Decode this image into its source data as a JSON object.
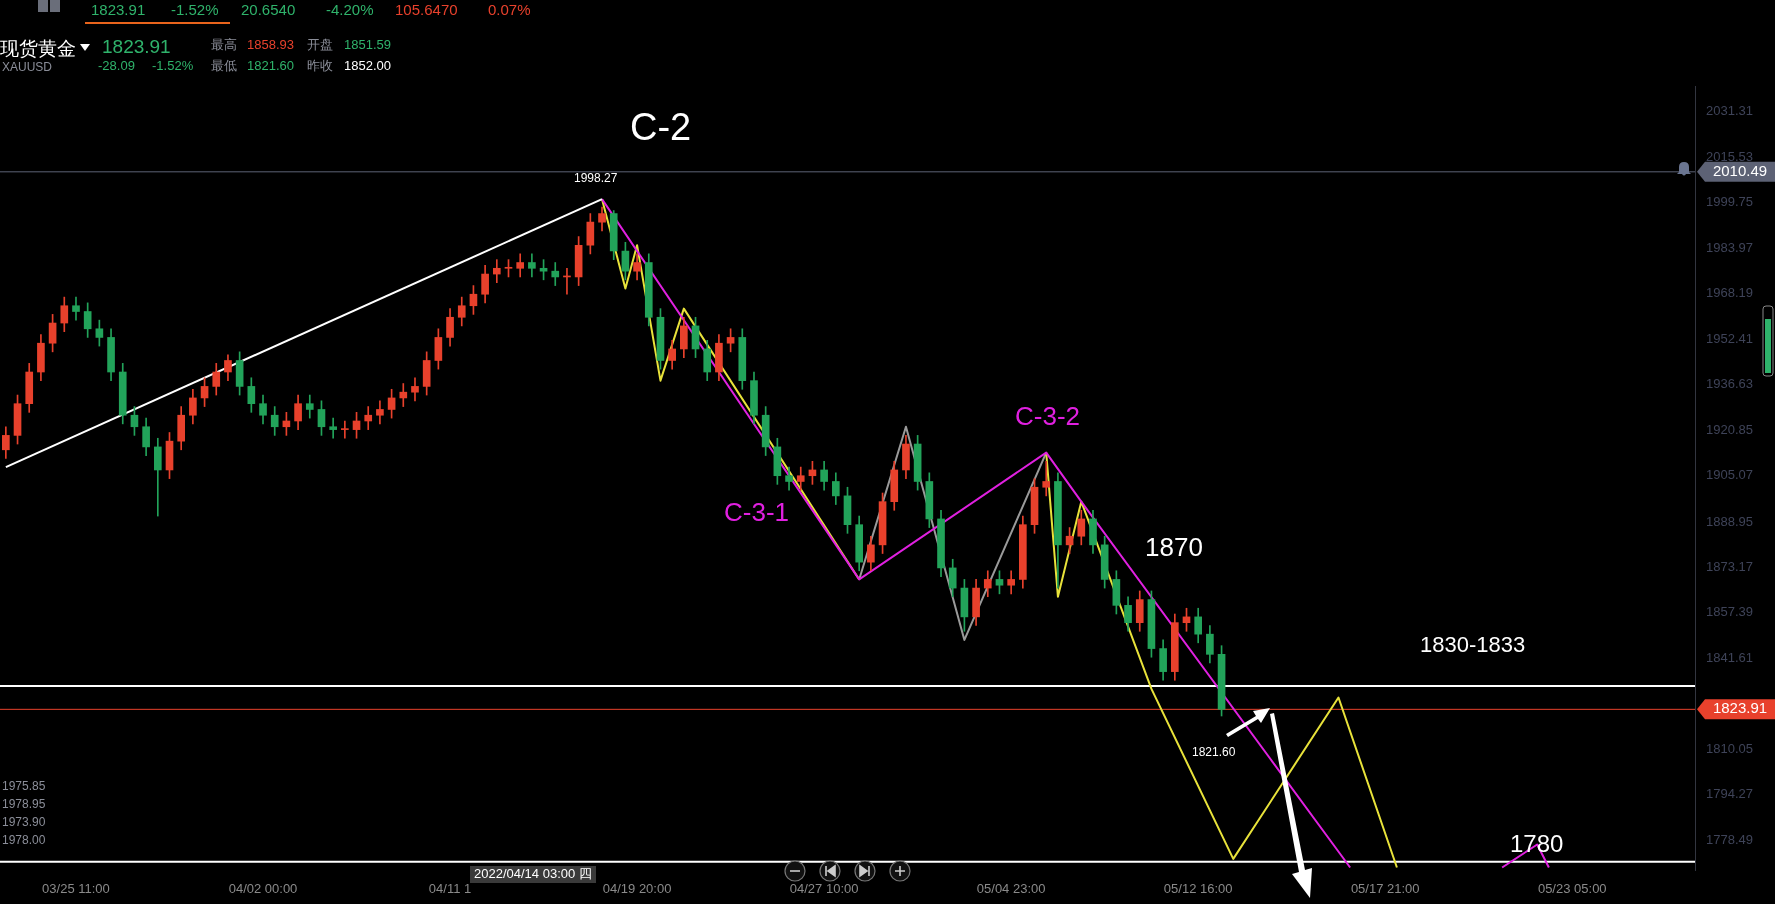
{
  "chart_data": {
    "type": "candlestick",
    "title": "现货黄金",
    "subtitle": "XAUUSD",
    "categories": [
      null,
      null,
      null,
      null,
      null,
      null,
      "03/25 11:00",
      null,
      null,
      null,
      null,
      null,
      null,
      null,
      null,
      null,
      null,
      null,
      null,
      null,
      null,
      null,
      "04/02 00:00",
      null,
      null,
      null,
      null,
      null,
      null,
      null,
      null,
      null,
      null,
      null,
      null,
      null,
      null,
      null,
      "04/11 1",
      null,
      null,
      null,
      null,
      null,
      null,
      null,
      null,
      null,
      null,
      null,
      null,
      null,
      null,
      null,
      "04/19 20:00",
      null,
      null,
      null,
      null,
      null,
      null,
      null,
      null,
      null,
      null,
      null,
      null,
      null,
      null,
      null,
      "04/27 10:00",
      null,
      null,
      null,
      null,
      null,
      null,
      null,
      null,
      null,
      null,
      null,
      null,
      null,
      null,
      null,
      "05/04 23:00",
      null,
      null,
      null,
      null,
      null,
      null,
      null,
      null,
      null,
      null,
      null,
      null,
      null,
      null,
      null,
      "05/12 16:00",
      null,
      null,
      null,
      null,
      null,
      null,
      null,
      null,
      null,
      null,
      null,
      null,
      null,
      null,
      null,
      "05/17 21:00",
      null,
      null,
      null,
      null,
      null,
      null,
      null,
      null,
      null,
      null,
      null,
      null,
      null,
      null,
      null,
      "05/23 05:00",
      null,
      null,
      null,
      null,
      null,
      null,
      null,
      null,
      null,
      null
    ],
    "ohlc": [
      [
        1914,
        1922,
        1911,
        1919
      ],
      [
        1919,
        1933,
        1916,
        1930
      ],
      [
        1930,
        1944,
        1927,
        1941
      ],
      [
        1941,
        1954,
        1938,
        1951
      ],
      [
        1951,
        1961,
        1948,
        1958
      ],
      [
        1958,
        1967,
        1955,
        1964
      ],
      [
        1964,
        1967,
        1959,
        1962
      ],
      [
        1962,
        1965,
        1953,
        1956
      ],
      [
        1956,
        1959,
        1950,
        1953
      ],
      [
        1953,
        1956,
        1938,
        1941
      ],
      [
        1941,
        1944,
        1923,
        1926
      ],
      [
        1926,
        1929,
        1919,
        1922
      ],
      [
        1922,
        1925,
        1912,
        1915
      ],
      [
        1915,
        1918,
        1891,
        1907
      ],
      [
        1907,
        1920,
        1904,
        1917
      ],
      [
        1917,
        1929,
        1914,
        1926
      ],
      [
        1926,
        1935,
        1923,
        1932
      ],
      [
        1932,
        1939,
        1929,
        1936
      ],
      [
        1936,
        1944,
        1933,
        1941
      ],
      [
        1941,
        1947,
        1938,
        1945
      ],
      [
        1945,
        1948,
        1933,
        1936
      ],
      [
        1936,
        1939,
        1927,
        1930
      ],
      [
        1930,
        1933,
        1923,
        1926
      ],
      [
        1926,
        1929,
        1919,
        1922
      ],
      [
        1922,
        1927,
        1919,
        1924
      ],
      [
        1924,
        1933,
        1921,
        1930
      ],
      [
        1930,
        1933,
        1925,
        1928
      ],
      [
        1928,
        1931,
        1919,
        1922
      ],
      [
        1922,
        1925,
        1918,
        1921
      ],
      [
        1921,
        1924,
        1918,
        1921
      ],
      [
        1921,
        1927,
        1918,
        1924
      ],
      [
        1924,
        1929,
        1921,
        1926
      ],
      [
        1926,
        1931,
        1923,
        1928
      ],
      [
        1928,
        1935,
        1925,
        1932
      ],
      [
        1932,
        1937,
        1929,
        1934
      ],
      [
        1934,
        1939,
        1931,
        1936
      ],
      [
        1936,
        1948,
        1933,
        1945
      ],
      [
        1945,
        1956,
        1942,
        1953
      ],
      [
        1953,
        1963,
        1950,
        1960
      ],
      [
        1960,
        1967,
        1957,
        1964
      ],
      [
        1964,
        1971,
        1961,
        1968
      ],
      [
        1968,
        1978,
        1965,
        1975
      ],
      [
        1975,
        1980,
        1972,
        1977
      ],
      [
        1977,
        1980,
        1974,
        1977
      ],
      [
        1977,
        1982,
        1974,
        1979
      ],
      [
        1979,
        1982,
        1974,
        1977
      ],
      [
        1977,
        1980,
        1973,
        1976
      ],
      [
        1976,
        1979,
        1971,
        1974
      ],
      [
        1974,
        1977,
        1968,
        1974
      ],
      [
        1974,
        1988,
        1971,
        1985
      ],
      [
        1985,
        1996,
        1982,
        1993
      ],
      [
        1993,
        1998.27,
        1990,
        1996
      ],
      [
        1996,
        1997,
        1980,
        1983
      ],
      [
        1983,
        1986,
        1973,
        1976
      ],
      [
        1976,
        1982,
        1973,
        1979
      ],
      [
        1979,
        1982,
        1957,
        1960
      ],
      [
        1960,
        1963,
        1942,
        1945
      ],
      [
        1945,
        1952,
        1942,
        1949
      ],
      [
        1949,
        1960,
        1946,
        1957
      ],
      [
        1957,
        1960,
        1946,
        1949
      ],
      [
        1949,
        1952,
        1938,
        1941
      ],
      [
        1941,
        1954,
        1938,
        1951
      ],
      [
        1951,
        1956,
        1948,
        1953
      ],
      [
        1953,
        1956,
        1935,
        1938
      ],
      [
        1938,
        1941,
        1923,
        1926
      ],
      [
        1926,
        1929,
        1912,
        1915
      ],
      [
        1915,
        1918,
        1902,
        1905
      ],
      [
        1905,
        1908,
        1900,
        1903
      ],
      [
        1903,
        1908,
        1900,
        1905
      ],
      [
        1905,
        1910,
        1902,
        1907
      ],
      [
        1907,
        1910,
        1900,
        1903
      ],
      [
        1903,
        1906,
        1895,
        1898
      ],
      [
        1898,
        1901,
        1885,
        1888
      ],
      [
        1888,
        1891,
        1872,
        1875
      ],
      [
        1875,
        1884,
        1872,
        1881
      ],
      [
        1881,
        1899,
        1878,
        1896
      ],
      [
        1896,
        1910,
        1893,
        1907
      ],
      [
        1907,
        1919,
        1904,
        1916
      ],
      [
        1916,
        1919,
        1900,
        1903
      ],
      [
        1903,
        1906,
        1887,
        1890
      ],
      [
        1890,
        1893,
        1870,
        1873
      ],
      [
        1873,
        1876,
        1863,
        1866
      ],
      [
        1866,
        1869,
        1851,
        1856
      ],
      [
        1856,
        1869,
        1853,
        1866
      ],
      [
        1866,
        1872,
        1863,
        1869
      ],
      [
        1869,
        1872,
        1864,
        1867
      ],
      [
        1867,
        1872,
        1864,
        1869
      ],
      [
        1869,
        1891,
        1866,
        1888
      ],
      [
        1888,
        1904,
        1885,
        1901
      ],
      [
        1901,
        1910,
        1898,
        1903
      ],
      [
        1903,
        1906,
        1866,
        1881
      ],
      [
        1881,
        1887,
        1878,
        1884
      ],
      [
        1884,
        1893,
        1881,
        1890
      ],
      [
        1890,
        1893,
        1878,
        1881
      ],
      [
        1881,
        1884,
        1866,
        1869
      ],
      [
        1869,
        1872,
        1857,
        1860
      ],
      [
        1860,
        1863,
        1851,
        1854
      ],
      [
        1854,
        1865,
        1851,
        1862
      ],
      [
        1862,
        1865,
        1842,
        1845
      ],
      [
        1845,
        1848,
        1834,
        1837
      ],
      [
        1837,
        1857,
        1834,
        1854
      ],
      [
        1854,
        1859,
        1851,
        1856
      ],
      [
        1856,
        1859,
        1847,
        1850
      ],
      [
        1850,
        1853,
        1840,
        1843
      ],
      [
        1843,
        1846,
        1821.6,
        1823.91
      ],
      null,
      null,
      null,
      null,
      null,
      null,
      null,
      null,
      null,
      null,
      null,
      null,
      null,
      null,
      null,
      null,
      null,
      null,
      null,
      null,
      null,
      null,
      null,
      null,
      null,
      null,
      null,
      null,
      null,
      null,
      null,
      null,
      null,
      null,
      null,
      null,
      null,
      null,
      null,
      null
    ],
    "colors": [
      "#e8412c",
      "#e8412c",
      "#e8412c",
      "#e8412c",
      "#e8412c",
      "#e8412c",
      "#22a35a",
      "#22a35a",
      "#22a35a",
      "#22a35a",
      "#22a35a",
      "#22a35a",
      "#22a35a",
      "#22a35a",
      "#e8412c",
      "#e8412c",
      "#e8412c",
      "#e8412c",
      "#e8412c",
      "#e8412c",
      "#22a35a",
      "#22a35a",
      "#22a35a",
      "#22a35a",
      "#e8412c",
      "#e8412c",
      "#22a35a",
      "#22a35a",
      "#22a35a",
      "#e8412c",
      "#e8412c",
      "#e8412c",
      "#e8412c",
      "#e8412c",
      "#e8412c",
      "#e8412c",
      "#e8412c",
      "#e8412c",
      "#e8412c",
      "#e8412c",
      "#e8412c",
      "#e8412c",
      "#e8412c",
      "#e8412c",
      "#e8412c",
      "#22a35a",
      "#22a35a",
      "#22a35a",
      "#e8412c",
      "#e8412c",
      "#e8412c",
      "#e8412c",
      "#22a35a",
      "#22a35a",
      "#e8412c",
      "#22a35a",
      "#22a35a",
      "#e8412c",
      "#e8412c",
      "#22a35a",
      "#22a35a",
      "#e8412c",
      "#e8412c",
      "#22a35a",
      "#22a35a",
      "#22a35a",
      "#22a35a",
      "#22a35a",
      "#e8412c",
      "#e8412c",
      "#22a35a",
      "#22a35a",
      "#22a35a",
      "#22a35a",
      "#e8412c",
      "#e8412c",
      "#e8412c",
      "#e8412c",
      "#22a35a",
      "#22a35a",
      "#22a35a",
      "#22a35a",
      "#22a35a",
      "#e8412c",
      "#e8412c",
      "#22a35a",
      "#e8412c",
      "#e8412c",
      "#e8412c",
      "#e8412c",
      "#22a35a",
      "#e8412c",
      "#e8412c",
      "#22a35a",
      "#22a35a",
      "#22a35a",
      "#22a35a",
      "#e8412c",
      "#22a35a",
      "#22a35a",
      "#e8412c",
      "#e8412c",
      "#22a35a",
      "#22a35a",
      "#22a35a",
      null,
      null,
      null,
      null,
      null,
      null,
      null,
      null,
      null,
      null,
      null,
      null,
      null,
      null,
      null,
      null,
      null,
      null,
      null,
      null,
      null,
      null,
      null,
      null,
      null,
      null,
      null,
      null,
      null,
      null,
      null,
      null,
      null,
      null,
      null,
      null,
      null,
      null,
      null,
      null
    ],
    "series": [
      {
        "type": "line",
        "color": "#ffffff",
        "values": [
          1908,
          null,
          null,
          null,
          null,
          null,
          null,
          null,
          null,
          null,
          null,
          null,
          null,
          null,
          null,
          null,
          null,
          null,
          null,
          null,
          null,
          null,
          null,
          null,
          null,
          null,
          null,
          null,
          null,
          null,
          null,
          null,
          null,
          null,
          null,
          null,
          null,
          null,
          null,
          null,
          null,
          null,
          null,
          null,
          null,
          null,
          null,
          null,
          null,
          null,
          null,
          2001,
          null,
          null,
          null,
          null,
          null,
          null,
          null,
          null,
          null,
          null,
          null,
          null,
          null,
          null,
          null,
          null,
          null,
          null,
          null,
          null,
          null,
          null,
          null,
          null,
          null,
          null,
          null,
          null,
          null,
          null,
          null,
          null,
          null,
          null,
          null,
          null,
          null,
          null,
          null,
          null,
          null,
          null,
          null,
          null,
          null,
          null,
          null,
          null,
          null,
          null,
          null,
          null,
          null,
          null,
          null,
          null,
          null,
          null,
          null,
          null,
          null,
          null,
          null,
          null,
          null,
          null,
          null,
          null,
          null,
          null,
          null,
          null,
          null,
          null,
          null,
          null,
          null,
          null,
          null,
          null,
          null,
          null,
          null,
          null,
          null,
          null,
          null,
          null,
          null,
          null,
          null,
          null,
          null
        ]
      },
      {
        "type": "line",
        "color": "#e020e0",
        "values": [
          null,
          null,
          null,
          null,
          null,
          null,
          null,
          null,
          null,
          null,
          null,
          null,
          null,
          null,
          null,
          null,
          null,
          null,
          null,
          null,
          null,
          null,
          null,
          null,
          null,
          null,
          null,
          null,
          null,
          null,
          null,
          null,
          null,
          null,
          null,
          null,
          null,
          null,
          null,
          null,
          null,
          null,
          null,
          null,
          null,
          null,
          null,
          null,
          null,
          null,
          null,
          2001,
          null,
          null,
          null,
          null,
          null,
          null,
          null,
          null,
          null,
          null,
          null,
          null,
          null,
          null,
          null,
          null,
          null,
          null,
          null,
          null,
          null,
          1869,
          null,
          null,
          null,
          null,
          null,
          null,
          null,
          null,
          null,
          null,
          null,
          null,
          null,
          null,
          null,
          1913,
          null,
          null,
          1896,
          null,
          null,
          null,
          null,
          null,
          null,
          null,
          null,
          null,
          null,
          null,
          null,
          null,
          null,
          null,
          null,
          null,
          null,
          null,
          null,
          null,
          null,
          1769,
          null,
          null,
          null,
          null,
          null,
          null,
          null,
          null,
          null,
          null,
          null,
          null,
          null,
          null,
          null,
          null,
          null,
          null,
          null,
          null,
          null,
          null,
          null,
          null,
          null,
          null,
          null,
          null,
          null
        ]
      },
      {
        "type": "line",
        "color": "#e020e0",
        "values": [
          null,
          null,
          null,
          null,
          null,
          null,
          null,
          null,
          null,
          null,
          null,
          null,
          null,
          null,
          null,
          null,
          null,
          null,
          null,
          null,
          null,
          null,
          null,
          null,
          null,
          null,
          null,
          null,
          null,
          null,
          null,
          null,
          null,
          null,
          null,
          null,
          null,
          null,
          null,
          null,
          null,
          null,
          null,
          null,
          null,
          null,
          null,
          null,
          null,
          null,
          null,
          null,
          null,
          null,
          null,
          null,
          null,
          null,
          null,
          null,
          null,
          null,
          null,
          null,
          null,
          null,
          null,
          null,
          null,
          null,
          null,
          null,
          null,
          null,
          null,
          null,
          null,
          null,
          null,
          null,
          null,
          null,
          null,
          null,
          null,
          null,
          null,
          null,
          null,
          null,
          null,
          null,
          null,
          null,
          null,
          null,
          null,
          null,
          null,
          null,
          null,
          null,
          null,
          null,
          null,
          null,
          null,
          null,
          null,
          null,
          null,
          null,
          null,
          null,
          null,
          null,
          null,
          null,
          null,
          null,
          null,
          null,
          null,
          null,
          null,
          null,
          null,
          null,
          1769,
          null,
          null,
          1777,
          1769,
          null,
          null,
          null,
          null,
          null,
          null,
          null,
          null,
          null,
          null,
          null,
          null
        ]
      },
      {
        "type": "line",
        "color": "#e8e23a",
        "values": [
          null,
          null,
          null,
          null,
          null,
          null,
          null,
          null,
          null,
          null,
          null,
          null,
          null,
          null,
          null,
          null,
          null,
          null,
          null,
          null,
          null,
          null,
          null,
          null,
          null,
          null,
          null,
          null,
          null,
          null,
          null,
          null,
          null,
          null,
          null,
          null,
          null,
          null,
          null,
          null,
          null,
          null,
          null,
          null,
          null,
          null,
          null,
          null,
          null,
          null,
          null,
          2001,
          null,
          1970,
          1985,
          null,
          1938,
          null,
          1963,
          null,
          null,
          null,
          null,
          null,
          null,
          null,
          null,
          null,
          null,
          null,
          null,
          null,
          null,
          1869,
          null,
          null,
          null,
          null,
          null,
          null,
          null,
          null,
          null,
          null,
          null,
          null,
          null,
          null,
          null,
          null,
          null,
          null,
          null,
          null,
          null,
          null,
          null,
          null,
          null,
          null,
          null,
          null,
          null,
          null,
          null,
          null,
          null,
          null,
          null,
          null,
          null,
          null,
          null,
          null,
          null,
          null,
          null,
          null,
          null,
          null,
          null,
          null,
          null,
          null,
          null,
          null,
          null,
          null,
          null,
          null,
          null,
          null,
          null,
          null,
          null,
          null,
          null,
          null,
          null,
          null,
          null,
          null,
          null,
          null,
          null
        ]
      },
      {
        "type": "line",
        "color": "#e8e23a",
        "values": [
          null,
          null,
          null,
          null,
          null,
          null,
          null,
          null,
          null,
          null,
          null,
          null,
          null,
          null,
          null,
          null,
          null,
          null,
          null,
          null,
          null,
          null,
          null,
          null,
          null,
          null,
          null,
          null,
          null,
          null,
          null,
          null,
          null,
          null,
          null,
          null,
          null,
          null,
          null,
          null,
          null,
          null,
          null,
          null,
          null,
          null,
          null,
          null,
          null,
          null,
          null,
          null,
          null,
          null,
          null,
          null,
          null,
          null,
          null,
          null,
          null,
          null,
          null,
          null,
          null,
          null,
          null,
          null,
          null,
          null,
          null,
          null,
          null,
          null,
          null,
          null,
          null,
          null,
          null,
          null,
          null,
          null,
          null,
          null,
          null,
          null,
          null,
          null,
          null,
          1913,
          1863,
          null,
          1896,
          null,
          null,
          null,
          null,
          null,
          1831,
          null,
          null,
          null,
          null,
          null,
          null,
          1772,
          null,
          null,
          null,
          null,
          null,
          null,
          null,
          null,
          1828,
          null,
          null,
          null,
          null,
          1769,
          null,
          null,
          null,
          null,
          null,
          null,
          null,
          null,
          null,
          null,
          null,
          null,
          null,
          null,
          null,
          null,
          null,
          null,
          null,
          null,
          null,
          null,
          null,
          null,
          null
        ]
      },
      {
        "type": "line",
        "color": "#9a9a9a",
        "values": [
          null,
          null,
          null,
          null,
          null,
          null,
          null,
          null,
          null,
          null,
          null,
          null,
          null,
          null,
          null,
          null,
          null,
          null,
          null,
          null,
          null,
          null,
          null,
          null,
          null,
          null,
          null,
          null,
          null,
          null,
          null,
          null,
          null,
          null,
          null,
          null,
          null,
          null,
          null,
          null,
          null,
          null,
          null,
          null,
          null,
          null,
          null,
          null,
          null,
          null,
          null,
          null,
          null,
          null,
          null,
          null,
          null,
          null,
          null,
          null,
          null,
          null,
          null,
          null,
          null,
          null,
          null,
          null,
          null,
          null,
          null,
          null,
          null,
          1869,
          null,
          null,
          null,
          1922,
          null,
          null,
          null,
          null,
          1848,
          null,
          null,
          null,
          null,
          null,
          null,
          1913,
          null,
          null,
          null,
          null,
          null,
          null,
          null,
          null,
          null,
          null,
          null,
          null,
          null,
          null,
          null,
          null,
          null,
          null,
          null,
          null,
          null,
          null,
          null,
          null,
          null,
          null,
          null,
          null,
          null,
          null,
          null,
          null,
          null,
          null,
          null,
          null,
          null,
          null,
          null,
          null,
          null,
          null,
          null,
          null,
          null,
          null,
          null,
          null,
          null,
          null,
          null,
          null,
          null,
          null,
          null
        ]
      }
    ],
    "ylim": [
      1768,
      2040
    ],
    "yticks": [
      2031.31,
      2015.53,
      1999.75,
      1983.97,
      1968.19,
      1952.41,
      1936.63,
      1920.85,
      1905.07,
      1888.95,
      1873.17,
      1857.39,
      1841.61,
      1810.05,
      1794.27,
      1778.49
    ],
    "ref_lines": [
      {
        "axis": "y",
        "value": 2010.49,
        "label": "2010.49",
        "color": "#5d6275"
      },
      {
        "axis": "y",
        "value": 1832,
        "color": "#ffffff"
      },
      {
        "axis": "y",
        "value": 1771,
        "color": "#ffffff"
      },
      {
        "axis": "y",
        "value": 1823.91,
        "label": "1823.91",
        "color": "#e8412c"
      }
    ],
    "annotations": [
      "1823.91",
      "-1.52%",
      "20.6540",
      "-4.20%",
      "105.6470",
      "0.07%",
      "1823.91",
      "-28.09",
      "-1.52%",
      "最高",
      "1858.93",
      "开盘",
      "1851.59",
      "最低",
      "1821.60",
      "昨收",
      "1852.00",
      "1975.85",
      "1978.95",
      "1973.90",
      "1978.00",
      "C-2",
      "C-3-1",
      "C-3-2",
      "1870",
      "1830-1833",
      "1780",
      "1998.27",
      "1821.60",
      "2022/04/14 03:00 四"
    ],
    "legend": false,
    "grid": false
  }
}
